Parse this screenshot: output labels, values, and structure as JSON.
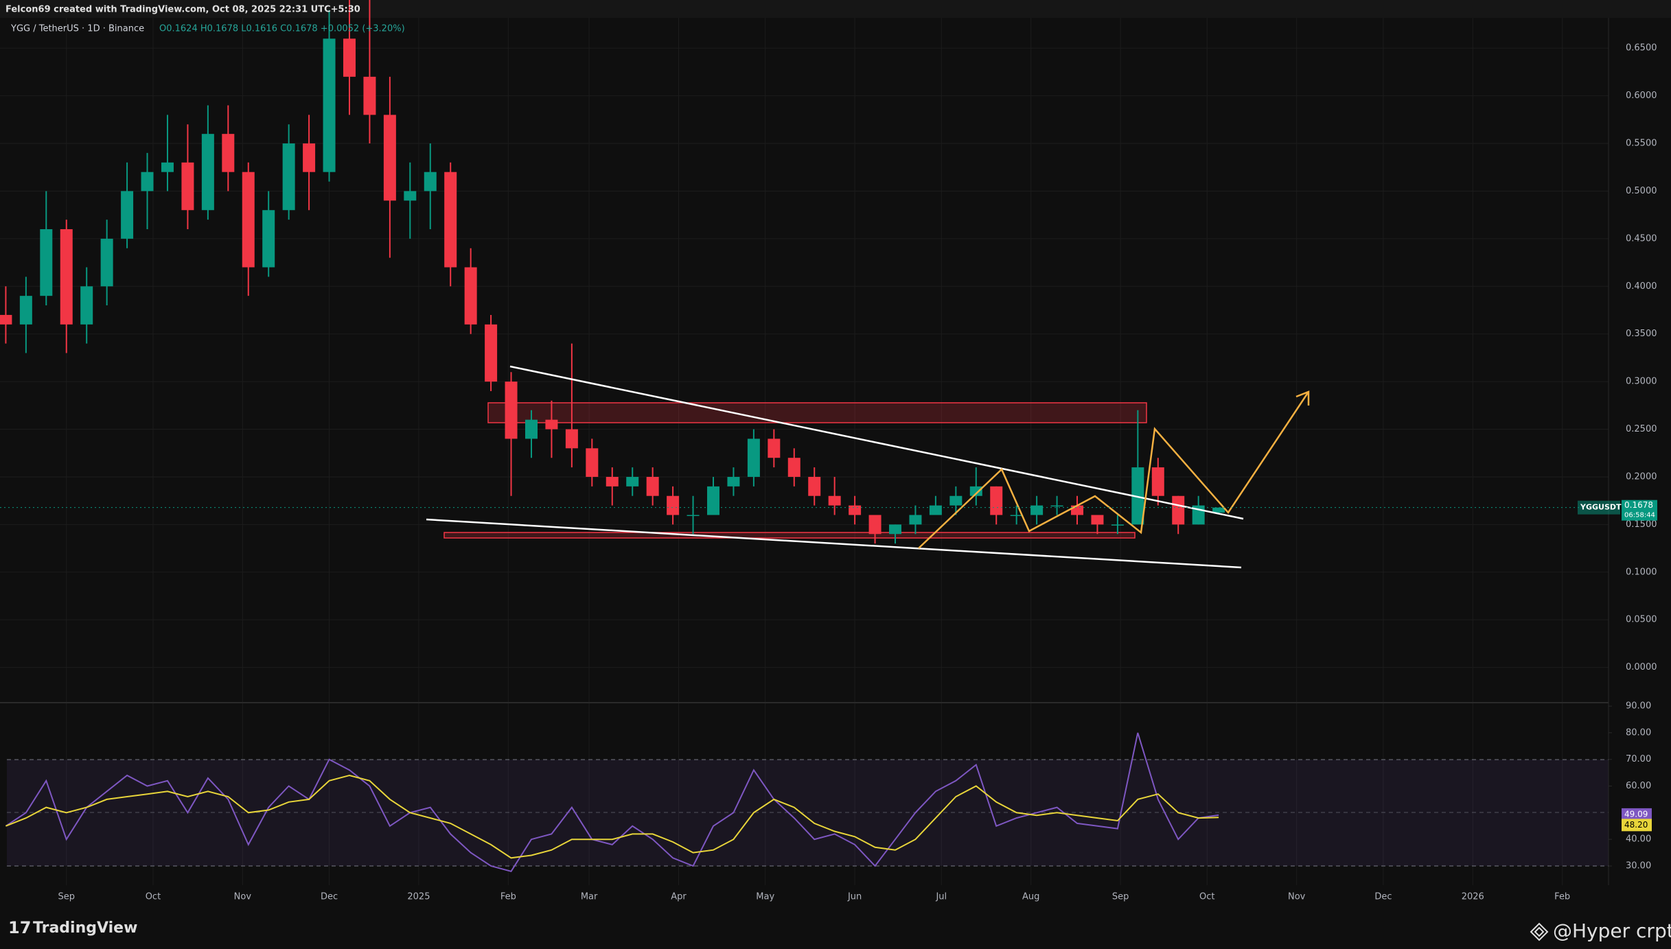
{
  "header": {
    "credit": "Felcon69 created with TradingView.com, Oct 08, 2025 22:31 UTC+5:30",
    "symbol": "YGG / TetherUS · 1D · Binance",
    "ohlc": "O0.1624 H0.1678 L0.1616 C0.1678 +0.0052 (+3.20%)"
  },
  "chart_data": [
    {
      "type": "candlestick",
      "up_color": "#089981",
      "down_color": "#f23645",
      "grid": true,
      "x": [
        -21,
        -14,
        -7,
        0,
        7,
        14,
        21,
        28,
        35,
        42,
        49,
        56,
        63,
        70,
        77,
        84,
        91,
        98,
        105,
        112,
        119,
        126,
        133,
        140,
        147,
        154,
        161,
        168,
        175,
        182,
        189,
        196,
        203,
        210,
        217,
        224,
        231,
        238,
        245,
        252,
        259,
        266,
        273,
        280,
        287,
        294,
        301,
        308,
        315,
        322,
        329,
        336,
        343,
        350,
        357,
        364,
        371,
        378,
        385,
        392,
        399
      ],
      "open": [
        0.37,
        0.36,
        0.39,
        0.46,
        0.36,
        0.4,
        0.45,
        0.5,
        0.52,
        0.53,
        0.48,
        0.56,
        0.52,
        0.42,
        0.48,
        0.55,
        0.52,
        0.66,
        0.62,
        0.58,
        0.49,
        0.5,
        0.52,
        0.42,
        0.36,
        0.3,
        0.24,
        0.26,
        0.25,
        0.23,
        0.2,
        0.19,
        0.2,
        0.18,
        0.16,
        0.16,
        0.19,
        0.2,
        0.24,
        0.22,
        0.2,
        0.18,
        0.17,
        0.16,
        0.14,
        0.15,
        0.16,
        0.17,
        0.18,
        0.19,
        0.16,
        0.16,
        0.17,
        0.17,
        0.16,
        0.15,
        0.15,
        0.21,
        0.18,
        0.15,
        0.1624
      ],
      "high": [
        0.4,
        0.41,
        0.5,
        0.47,
        0.42,
        0.47,
        0.53,
        0.54,
        0.58,
        0.57,
        0.59,
        0.59,
        0.53,
        0.5,
        0.57,
        0.58,
        0.69,
        0.72,
        0.72,
        0.62,
        0.53,
        0.55,
        0.53,
        0.44,
        0.37,
        0.31,
        0.27,
        0.28,
        0.34,
        0.24,
        0.21,
        0.21,
        0.21,
        0.19,
        0.18,
        0.2,
        0.21,
        0.25,
        0.25,
        0.23,
        0.21,
        0.2,
        0.18,
        0.16,
        0.15,
        0.17,
        0.18,
        0.19,
        0.21,
        0.19,
        0.17,
        0.18,
        0.18,
        0.18,
        0.16,
        0.16,
        0.27,
        0.22,
        0.18,
        0.18,
        0.1678
      ],
      "low": [
        0.34,
        0.33,
        0.38,
        0.33,
        0.34,
        0.38,
        0.44,
        0.46,
        0.5,
        0.46,
        0.47,
        0.5,
        0.39,
        0.41,
        0.47,
        0.48,
        0.51,
        0.58,
        0.55,
        0.43,
        0.45,
        0.46,
        0.4,
        0.35,
        0.29,
        0.18,
        0.22,
        0.22,
        0.21,
        0.19,
        0.17,
        0.18,
        0.17,
        0.15,
        0.14,
        0.16,
        0.18,
        0.19,
        0.21,
        0.19,
        0.17,
        0.16,
        0.15,
        0.13,
        0.13,
        0.14,
        0.16,
        0.16,
        0.17,
        0.15,
        0.15,
        0.15,
        0.16,
        0.15,
        0.14,
        0.14,
        0.15,
        0.17,
        0.14,
        0.15,
        0.1616
      ],
      "close": [
        0.36,
        0.39,
        0.46,
        0.36,
        0.4,
        0.45,
        0.5,
        0.52,
        0.53,
        0.48,
        0.56,
        0.52,
        0.42,
        0.48,
        0.55,
        0.52,
        0.66,
        0.62,
        0.58,
        0.49,
        0.5,
        0.52,
        0.42,
        0.36,
        0.3,
        0.24,
        0.26,
        0.25,
        0.23,
        0.2,
        0.19,
        0.2,
        0.18,
        0.16,
        0.16,
        0.19,
        0.2,
        0.24,
        0.22,
        0.2,
        0.18,
        0.17,
        0.16,
        0.14,
        0.15,
        0.16,
        0.17,
        0.18,
        0.19,
        0.16,
        0.16,
        0.17,
        0.17,
        0.16,
        0.15,
        0.15,
        0.21,
        0.18,
        0.15,
        0.17,
        0.1678
      ],
      "xlim": [
        -23,
        534
      ],
      "ylim": [
        -0.037,
        0.684
      ],
      "yticks": [
        {
          "value": 0,
          "label": "0.0000"
        },
        {
          "value": 0.05,
          "label": "0.0500"
        },
        {
          "value": 0.1,
          "label": "0.1000"
        },
        {
          "value": 0.15,
          "label": "0.1500"
        },
        {
          "value": 0.2,
          "label": "0.2000"
        },
        {
          "value": 0.25,
          "label": "0.2500"
        },
        {
          "value": 0.3,
          "label": "0.3000"
        },
        {
          "value": 0.35,
          "label": "0.3500"
        },
        {
          "value": 0.4,
          "label": "0.4000"
        },
        {
          "value": 0.45,
          "label": "0.4500"
        },
        {
          "value": 0.5,
          "label": "0.5000"
        },
        {
          "value": 0.55,
          "label": "0.5500"
        },
        {
          "value": 0.6,
          "label": "0.6000"
        },
        {
          "value": 0.65,
          "label": "0.6500"
        }
      ],
      "price_tag": {
        "symbol": "YGGUSDT",
        "price": 0.1678,
        "countdown": "06:58:44"
      }
    },
    {
      "type": "line",
      "grid": true,
      "x": [
        -21,
        -14,
        -7,
        0,
        7,
        14,
        21,
        28,
        35,
        42,
        49,
        56,
        63,
        70,
        77,
        84,
        91,
        98,
        105,
        112,
        119,
        126,
        133,
        140,
        147,
        154,
        161,
        168,
        175,
        182,
        189,
        196,
        203,
        210,
        217,
        224,
        231,
        238,
        245,
        252,
        259,
        266,
        273,
        280,
        287,
        294,
        301,
        308,
        315,
        322,
        329,
        336,
        343,
        350,
        357,
        364,
        371,
        378,
        385,
        392,
        399
      ],
      "series": [
        {
          "name": "RSI",
          "color": "#7e57c2",
          "values": [
            45,
            50,
            62,
            40,
            52,
            58,
            64,
            60,
            62,
            50,
            63,
            55,
            38,
            52,
            60,
            55,
            70,
            66,
            60,
            45,
            50,
            52,
            42,
            35,
            30,
            28,
            40,
            42,
            52,
            40,
            38,
            45,
            40,
            33,
            30,
            45,
            50,
            66,
            55,
            48,
            40,
            42,
            38,
            30,
            40,
            50,
            58,
            62,
            68,
            45,
            48,
            50,
            52,
            46,
            45,
            44,
            80,
            55,
            40,
            48,
            49.09
          ]
        },
        {
          "name": "RSI MA",
          "color": "#e8d53a",
          "values": [
            45,
            48,
            52,
            50,
            52,
            55,
            56,
            57,
            58,
            56,
            58,
            56,
            50,
            51,
            54,
            55,
            62,
            64,
            62,
            55,
            50,
            48,
            46,
            42,
            38,
            33,
            34,
            36,
            40,
            40,
            40,
            42,
            42,
            39,
            35,
            36,
            40,
            50,
            55,
            52,
            46,
            43,
            41,
            37,
            36,
            40,
            48,
            56,
            60,
            54,
            50,
            49,
            50,
            49,
            48,
            47,
            55,
            57,
            50,
            48,
            48.2
          ],
          "value_labels": [
            null,
            null,
            null,
            null,
            null,
            null,
            null,
            null,
            null,
            null,
            null,
            null,
            null,
            null,
            null,
            null,
            null,
            null,
            null,
            null,
            null,
            null,
            null,
            null,
            null,
            null,
            null,
            null,
            null,
            null,
            null,
            null,
            null,
            null,
            null,
            null,
            null,
            null,
            null,
            null,
            null,
            null,
            null,
            null,
            null,
            null,
            null,
            null,
            null,
            null,
            null,
            null,
            null,
            null,
            null,
            null,
            null,
            null,
            null,
            null,
            "48.20"
          ]
        }
      ],
      "xlim": [
        -23,
        534
      ],
      "ylim": [
        23.3,
        91.3
      ],
      "yticks": [
        {
          "value": 30,
          "label": "30.00"
        },
        {
          "value": 40,
          "label": "40.00"
        },
        {
          "value": 60,
          "label": "60.00"
        },
        {
          "value": 70,
          "label": "70.00"
        },
        {
          "value": 80,
          "label": "80.00"
        },
        {
          "value": 90,
          "label": "90.00"
        }
      ],
      "xticks": [
        {
          "value": 0,
          "label": "Sep"
        },
        {
          "value": 30,
          "label": "Oct"
        },
        {
          "value": 61,
          "label": "Nov"
        },
        {
          "value": 91,
          "label": "Dec"
        },
        {
          "value": 122,
          "label": "2025"
        },
        {
          "value": 153,
          "label": "Feb"
        },
        {
          "value": 181,
          "label": "Mar"
        },
        {
          "value": 212,
          "label": "Apr"
        },
        {
          "value": 242,
          "label": "May"
        },
        {
          "value": 273,
          "label": "Jun"
        },
        {
          "value": 303,
          "label": "Jul"
        },
        {
          "value": 334,
          "label": "Aug"
        },
        {
          "value": 365,
          "label": "Sep"
        },
        {
          "value": 395,
          "label": "Oct"
        },
        {
          "value": 426,
          "label": "Nov"
        },
        {
          "value": 456,
          "label": "Dec"
        },
        {
          "value": 487,
          "label": "2026"
        },
        {
          "value": 518,
          "label": "Feb"
        }
      ]
    }
  ],
  "footer": {
    "brand": "TradingView",
    "watermark": "@Hyper crpto"
  }
}
